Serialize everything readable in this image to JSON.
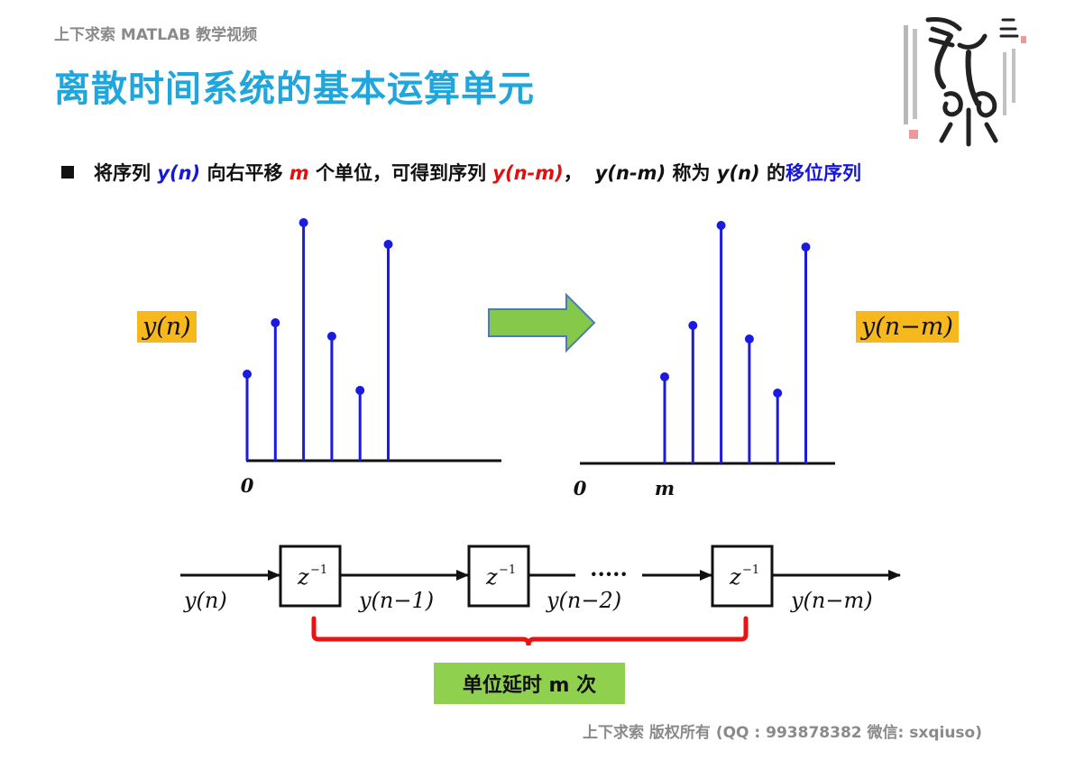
{
  "header": "上下求索 MATLAB 教学视频",
  "title": "离散时间系统的基本运算单元",
  "bullet": {
    "p1": "将序列 ",
    "yn": "y(n)",
    "p2": " 向右平移 ",
    "m": "m",
    "p3": " 个单位，可得到序列 ",
    "ynm": "y(n-m)",
    "p4": "，",
    "ynm2": "y(n-m)",
    "p5": " 称为 ",
    "yn2": "y(n)",
    "p6": " 的",
    "term": "移位序列"
  },
  "left_label": "y(n)",
  "right_label": "y(n−m)",
  "chart_data": [
    {
      "type": "stem",
      "x": [
        0,
        1,
        2,
        3,
        4,
        5
      ],
      "values": [
        3.2,
        5.1,
        8.8,
        4.6,
        2.6,
        8.0
      ],
      "tick_labels": [
        "0"
      ]
    },
    {
      "type": "stem",
      "x": [
        "m",
        "m+1",
        "m+2",
        "m+3",
        "m+4",
        "m+5"
      ],
      "values": [
        3.2,
        5.1,
        8.8,
        4.6,
        2.6,
        8.0
      ],
      "tick_labels": [
        "0",
        "m"
      ]
    }
  ],
  "block_diagram": {
    "delay": "z",
    "delay_exp": "−1",
    "signals": [
      "y(n)",
      "y(n−1)",
      "y(n−2)",
      "y(n−m)"
    ],
    "ellipsis": "·····",
    "brace_label": "单位延时 m 次"
  },
  "footer": "上下求索  版权所有  (QQ : 993878382   微信: sxqiuso)",
  "colors": {
    "title": "#1fa6dc",
    "stem": "#1a1ae0",
    "arrow": "#86c84a",
    "label_bg": "#f6b81c",
    "brace": "#ee1111"
  },
  "icons": [
    "seal-calligraphy-icon",
    "right-arrow-icon"
  ]
}
